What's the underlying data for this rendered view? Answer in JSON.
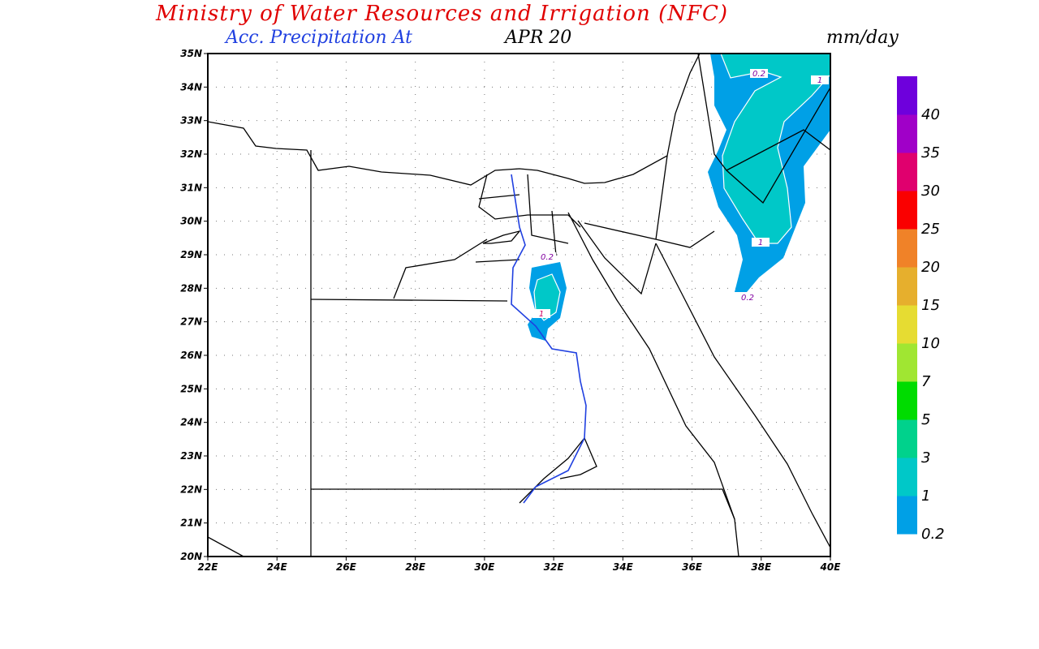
{
  "header": {
    "title": "Ministry of Water Resources and Irrigation (NFC)",
    "subtitle_prefix": "Acc. Precipitation  At",
    "date": "APR 20",
    "units": "mm/day"
  },
  "map": {
    "lon_range": [
      22,
      40
    ],
    "lat_range": [
      20,
      35
    ],
    "lon_ticks": [
      "22E",
      "24E",
      "26E",
      "28E",
      "30E",
      "32E",
      "34E",
      "36E",
      "38E",
      "40E"
    ],
    "lat_ticks": [
      "20N",
      "21N",
      "22N",
      "23N",
      "24N",
      "25N",
      "26N",
      "27N",
      "28N",
      "29N",
      "30N",
      "31N",
      "32N",
      "33N",
      "34N",
      "35N"
    ],
    "contour_labels": [
      "0.2",
      "1",
      "0.2",
      "0.2",
      "1",
      "1"
    ]
  },
  "colorbar": {
    "labels": [
      "0.2",
      "1",
      "3",
      "5",
      "7",
      "10",
      "15",
      "20",
      "25",
      "30",
      "35",
      "40"
    ],
    "colors": [
      "#00a0e6",
      "#00c8c8",
      "#00d28c",
      "#00dc00",
      "#a0e632",
      "#e6dc32",
      "#e6af2d",
      "#f08228",
      "#fa0000",
      "#e0006e",
      "#a000c8",
      "#6e00dc"
    ]
  }
}
